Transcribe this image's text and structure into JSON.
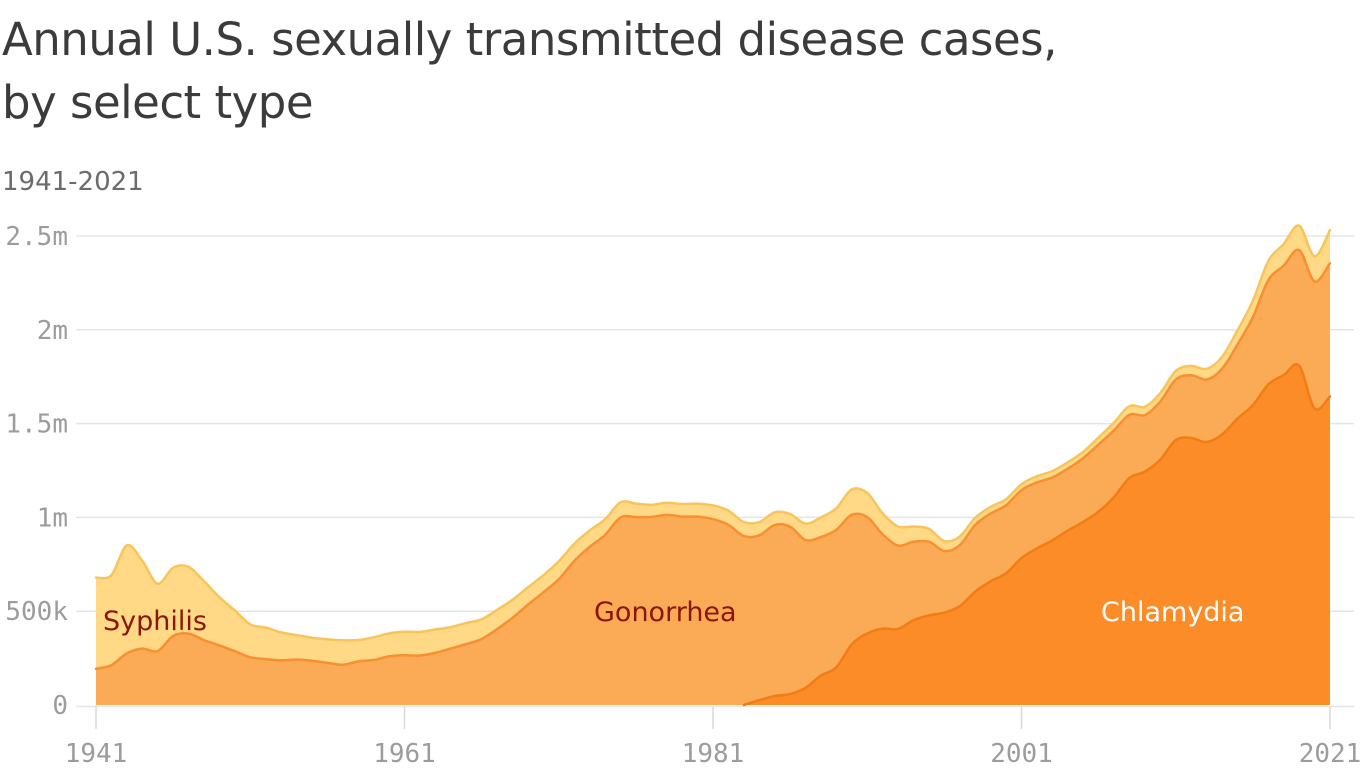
{
  "header": {
    "title_line1": "Annual U.S. sexually transmitted disease cases,",
    "title_line2": "by select type",
    "subtitle": "1941-2021"
  },
  "chart_data": {
    "type": "area",
    "stacked": true,
    "title": "Annual U.S. sexually transmitted disease cases, by select type",
    "subtitle": "1941-2021",
    "unit": "reported cases, thousands",
    "xlim": [
      1941,
      2021
    ],
    "ylim_thousands": [
      0,
      2600
    ],
    "grid": "horizontal",
    "legend_position": "labels drawn on areas",
    "x_axis": {
      "ticks": [
        {
          "year": 1941,
          "label": "1941"
        },
        {
          "year": 1961,
          "label": "1961"
        },
        {
          "year": 1981,
          "label": "1981"
        },
        {
          "year": 2001,
          "label": "2001"
        },
        {
          "year": 2021,
          "label": "2021"
        }
      ]
    },
    "y_axis": {
      "ticks": [
        {
          "value": 0,
          "label": "0"
        },
        {
          "value": 500,
          "label": "500k"
        },
        {
          "value": 1000,
          "label": "1m"
        },
        {
          "value": 1500,
          "label": "1.5m"
        },
        {
          "value": 2000,
          "label": "2m"
        },
        {
          "value": 2500,
          "label": "2.5m"
        }
      ]
    },
    "style": {
      "grid_color": "#e5e5e5",
      "tick_color": "#d9d9d9",
      "axis_label_color": "#9c9c9c",
      "title_color": "#3b3b3b",
      "subtitle_color": "#6b6b6b"
    },
    "x": [
      1941,
      1942,
      1943,
      1944,
      1945,
      1946,
      1947,
      1948,
      1949,
      1950,
      1951,
      1952,
      1953,
      1954,
      1955,
      1956,
      1957,
      1958,
      1959,
      1960,
      1961,
      1962,
      1963,
      1964,
      1965,
      1966,
      1967,
      1968,
      1969,
      1970,
      1971,
      1972,
      1973,
      1974,
      1975,
      1976,
      1977,
      1978,
      1979,
      1980,
      1981,
      1982,
      1983,
      1984,
      1985,
      1986,
      1987,
      1988,
      1989,
      1990,
      1991,
      1992,
      1993,
      1994,
      1995,
      1996,
      1997,
      1998,
      1999,
      2000,
      2001,
      2002,
      2003,
      2004,
      2005,
      2006,
      2007,
      2008,
      2009,
      2010,
      2011,
      2012,
      2013,
      2014,
      2015,
      2016,
      2017,
      2018,
      2019,
      2020,
      2021
    ],
    "stack_order_bottom_to_top": [
      "Chlamydia",
      "Gonorrhea",
      "Syphilis"
    ],
    "series": [
      {
        "name": "Syphilis",
        "fill": "#ffd985",
        "stroke": "#f8c45c",
        "label_color": "#8b1500",
        "values_thousands": [
          485.6,
          479.6,
          575.6,
          467.8,
          359.1,
          363.6,
          355.6,
          314.3,
          256.5,
          217.6,
          174.9,
          168.0,
          148.6,
          130.7,
          122.4,
          126.2,
          130.2,
          113.9,
          120.8,
          122.5,
          125.0,
          126.2,
          124.1,
          114.3,
          112.8,
          105.2,
          102.6,
          96.3,
          92.2,
          91.4,
          95.0,
          91.1,
          87.5,
          83.8,
          80.4,
          71.8,
          64.6,
          64.9,
          67.0,
          68.8,
          72.8,
          75.6,
          74.6,
          69.9,
          68.2,
          68.0,
          87.3,
          104.5,
          115.1,
          135.6,
          128.6,
          112.6,
          101.3,
          81.7,
          69.0,
          53.0,
          46.5,
          38.0,
          35.6,
          31.6,
          32.2,
          32.9,
          34.3,
          33.4,
          33.3,
          36.9,
          40.9,
          46.3,
          44.8,
          45.8,
          46.0,
          49.9,
          56.5,
          63.5,
          74.7,
          88.0,
          101.6,
          115.0,
          129.8,
          133.9,
          176.7
        ]
      },
      {
        "name": "Gonorrhea",
        "fill": "#fbab55",
        "stroke": "#f78f33",
        "label_color": "#8b1500",
        "values_thousands": [
          193.5,
          212.4,
          275.1,
          300.7,
          287.2,
          368.0,
          380.7,
          345.5,
          317.9,
          286.7,
          254.5,
          244.9,
          238.3,
          242.1,
          236.2,
          224.3,
          214.5,
          232.4,
          240.3,
          258.9,
          265.0,
          263.7,
          278.3,
          300.7,
          324.9,
          351.7,
          404.8,
          464.5,
          534.9,
          600.1,
          670.3,
          767.2,
          842.6,
          906.1,
          999.9,
          1002.0,
          1002.2,
          1013.4,
          1004.1,
          1004.0,
          990.9,
          960.6,
          900.4,
          878.6,
          911.4,
          892.2,
          787.5,
          738.2,
          733.3,
          690.2,
          620.5,
          501.4,
          444.6,
          418.1,
          392.8,
          328.2,
          324.9,
          355.6,
          360.8,
          363.1,
          361.7,
          351.9,
          335.1,
          330.1,
          339.6,
          358.4,
          355.8,
          336.7,
          301.2,
          309.3,
          321.8,
          334.8,
          333.0,
          350.1,
          395.2,
          468.5,
          555.6,
          583.4,
          616.4,
          677.8,
          710.2
        ]
      },
      {
        "name": "Chlamydia",
        "fill": "#fb8c28",
        "stroke": "#f27d15",
        "label_color": "#ffffff",
        "values_thousands": [
          0,
          0,
          0,
          0,
          0,
          0,
          0,
          0,
          0,
          0,
          0,
          0,
          0,
          0,
          0,
          0,
          0,
          0,
          0,
          0,
          0,
          0,
          0,
          0,
          0,
          0,
          0,
          0,
          0,
          0,
          0,
          0,
          0,
          0,
          0,
          0,
          0,
          0,
          0,
          0,
          0,
          0,
          0,
          25.8,
          47.8,
          58.0,
          91.9,
          157.1,
          200.9,
          323.7,
          381.2,
          407.5,
          405.3,
          451.8,
          477.6,
          492.6,
          526.7,
          604.4,
          659.4,
          702.1,
          783.2,
          834.6,
          877.5,
          929.5,
          976.4,
          1030.9,
          1108.4,
          1210.5,
          1244.2,
          1307.9,
          1412.8,
          1423.0,
          1401.9,
          1441.8,
          1526.7,
          1598.4,
          1708.6,
          1758.7,
          1808.7,
          1579.9,
          1644.4
        ]
      }
    ]
  }
}
